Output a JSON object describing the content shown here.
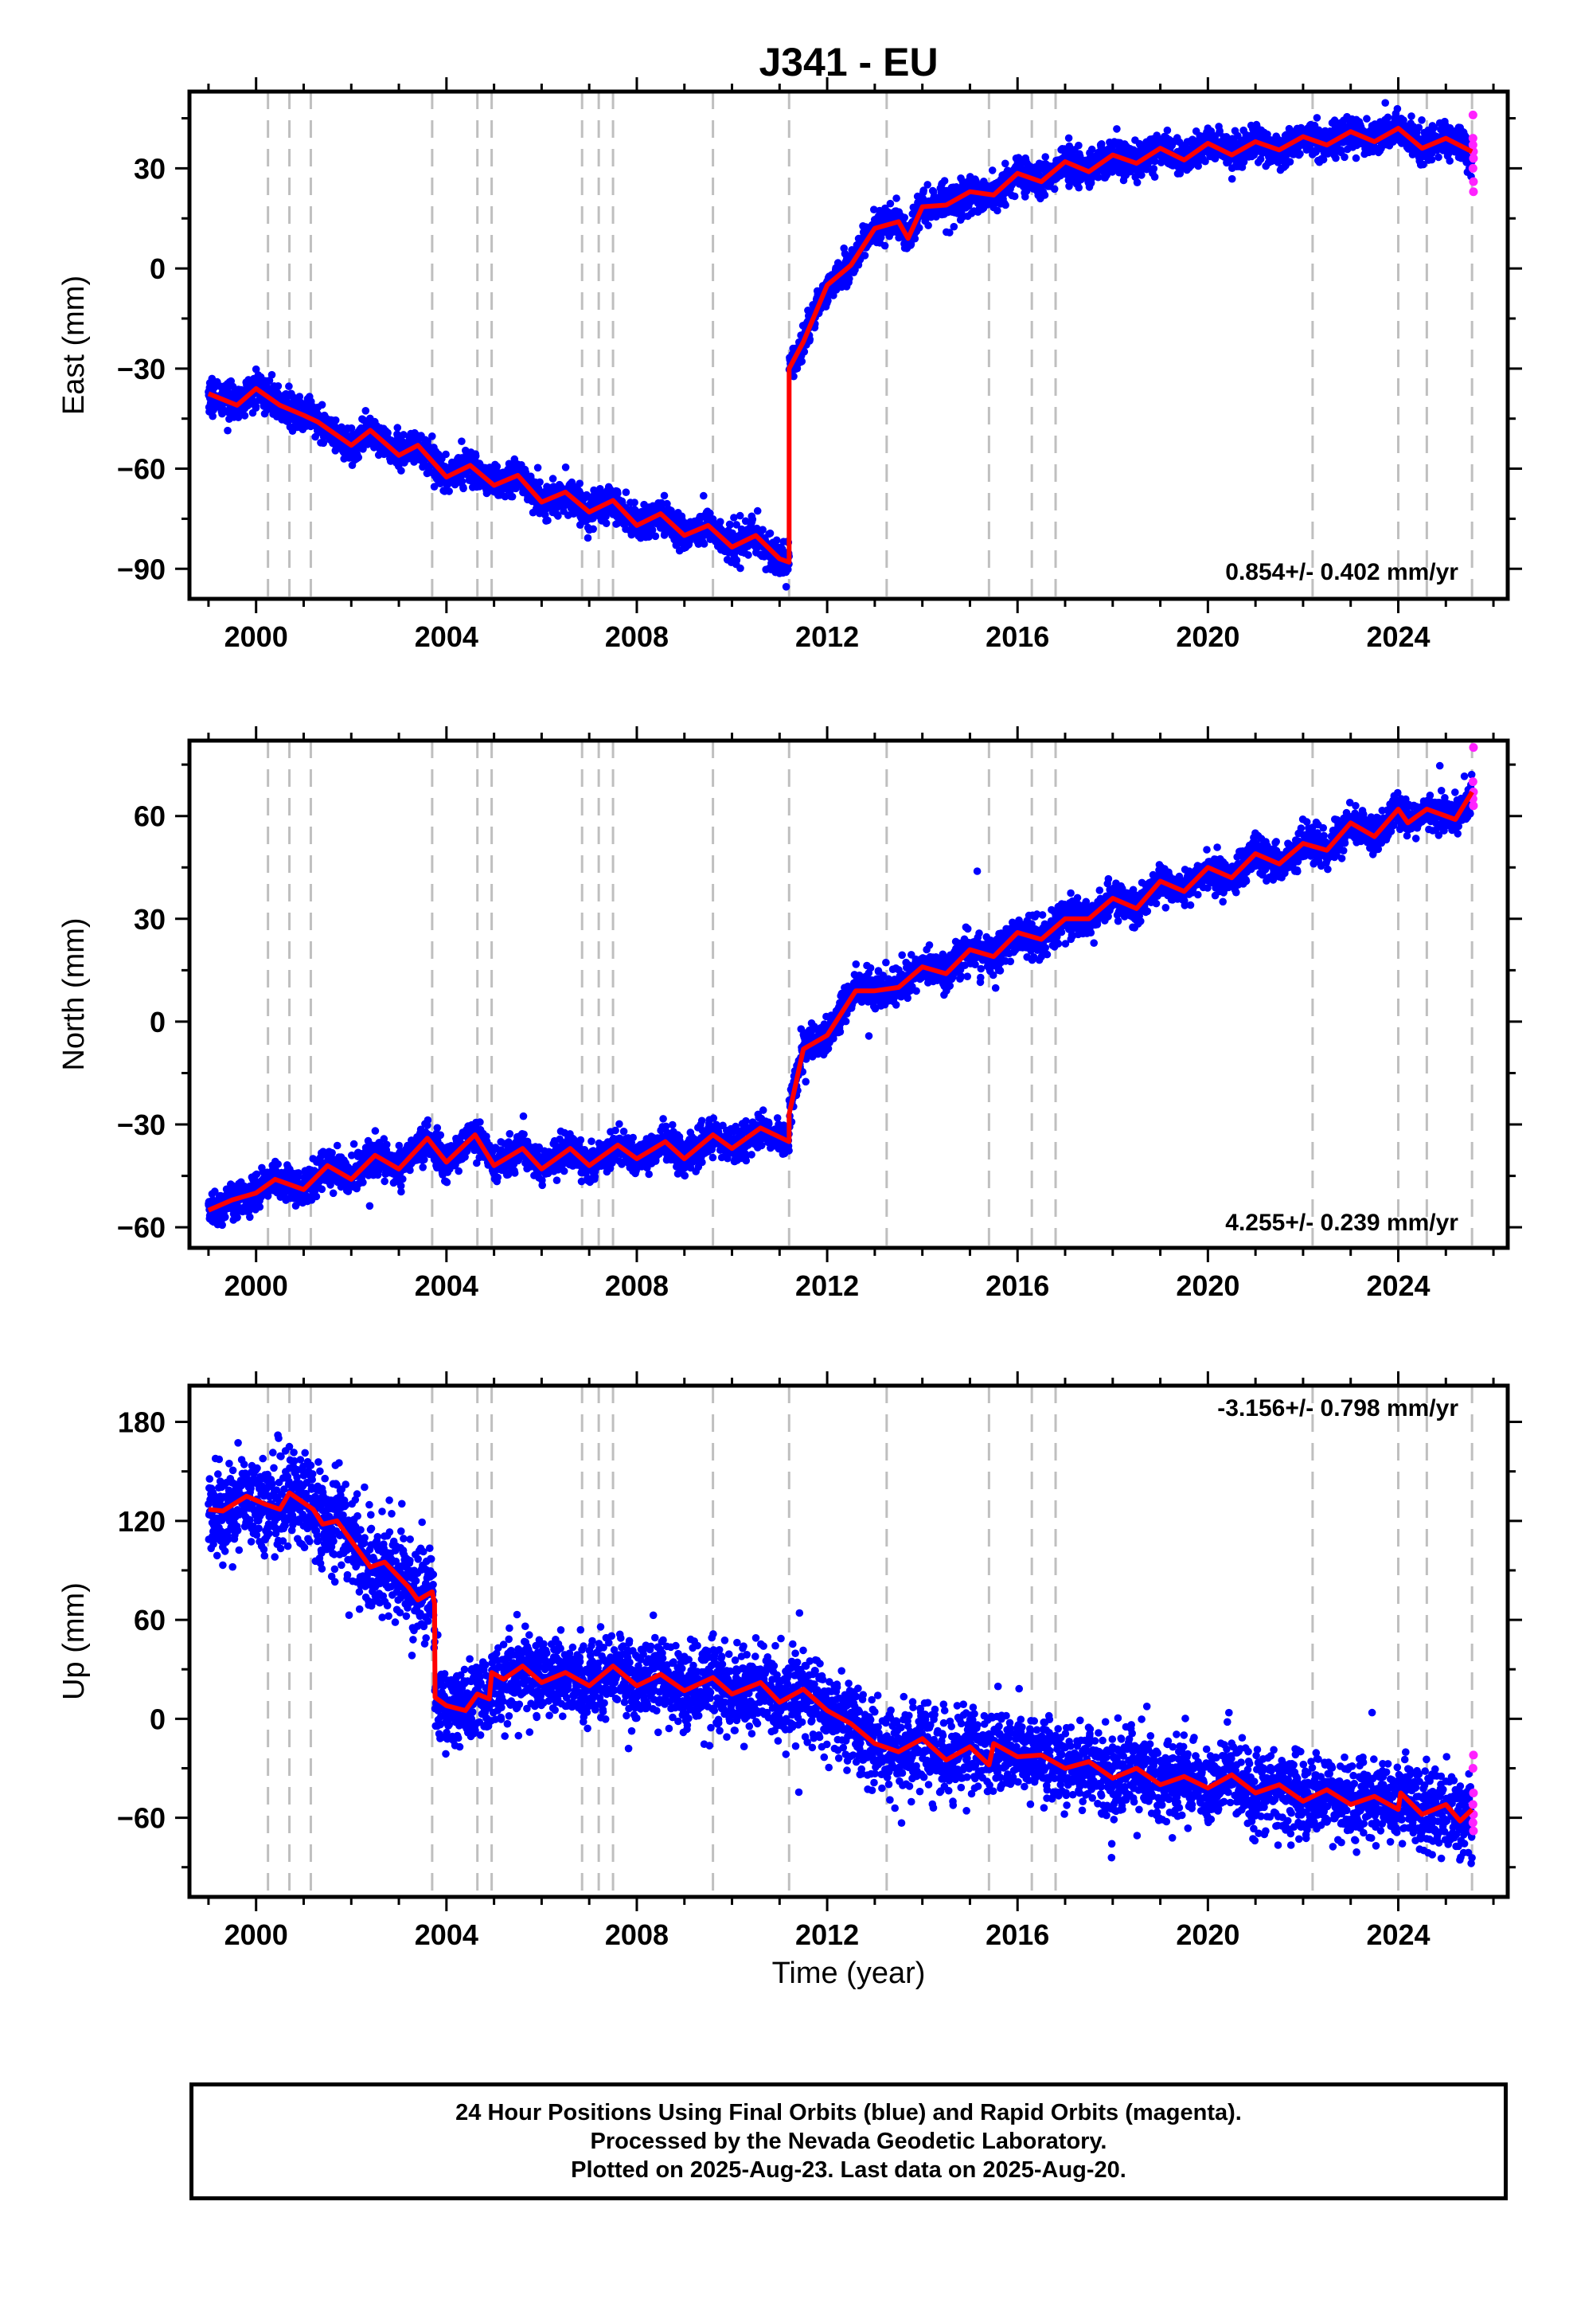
{
  "title": "J341 - EU",
  "xlabel": "Time (year)",
  "colors": {
    "final": "#0000ff",
    "rapid": "#ff22ff",
    "model": "#ff0000",
    "event_lines": "#bfbfbf"
  },
  "footer": {
    "line1": "24 Hour Positions Using Final Orbits (blue) and Rapid Orbits (magenta).",
    "line2": "Processed by the Nevada Geodetic Laboratory.",
    "line3": "Plotted on 2025-Aug-23. Last data on 2025-Aug-20."
  },
  "chart_data": [
    {
      "type": "scatter",
      "ylabel": "East (mm)",
      "rate_label": "0.854+/- 0.402 mm/yr",
      "xlim": [
        1998.6,
        2026.3
      ],
      "ylim": [
        -99,
        53
      ],
      "yticks": [
        -90,
        -60,
        -30,
        0,
        30
      ],
      "xticks": [
        2000,
        2004,
        2008,
        2012,
        2016,
        2020,
        2024
      ],
      "event_lines": [
        2000.25,
        2000.7,
        2001.15,
        2003.7,
        2004.65,
        2004.95,
        2006.85,
        2007.2,
        2007.5,
        2009.6,
        2011.2,
        2013.25,
        2015.4,
        2016.3,
        2016.8,
        2022.2,
        2024.0,
        2024.6,
        2025.55
      ],
      "model": [
        [
          1999.0,
          -37.5
        ],
        [
          1999.6,
          -41.0
        ],
        [
          2000.0,
          -36.0
        ],
        [
          2000.5,
          -41.0
        ],
        [
          2001.0,
          -44.0
        ],
        [
          2001.3,
          -46.0
        ],
        [
          2002.0,
          -53.0
        ],
        [
          2002.4,
          -48.5
        ],
        [
          2003.0,
          -56.0
        ],
        [
          2003.4,
          -53.0
        ],
        [
          2004.0,
          -62.5
        ],
        [
          2004.5,
          -59.0
        ],
        [
          2005.0,
          -65.0
        ],
        [
          2005.5,
          -62.0
        ],
        [
          2006.0,
          -70.0
        ],
        [
          2006.5,
          -67.0
        ],
        [
          2007.0,
          -73.0
        ],
        [
          2007.5,
          -69.5
        ],
        [
          2008.0,
          -77.0
        ],
        [
          2008.5,
          -73.5
        ],
        [
          2009.0,
          -80.0
        ],
        [
          2009.5,
          -77.0
        ],
        [
          2010.0,
          -83.5
        ],
        [
          2010.5,
          -80.0
        ],
        [
          2011.0,
          -87.0
        ],
        [
          2011.2,
          -88.0
        ],
        [
          2011.2,
          -30.0
        ],
        [
          2011.5,
          -22.0
        ],
        [
          2012.0,
          -5.0
        ],
        [
          2012.5,
          1.0
        ],
        [
          2013.0,
          12.0
        ],
        [
          2013.5,
          14.0
        ],
        [
          2013.7,
          9.0
        ],
        [
          2014.0,
          18.5
        ],
        [
          2014.5,
          19.0
        ],
        [
          2015.0,
          23.0
        ],
        [
          2015.5,
          22.0
        ],
        [
          2016.0,
          28.5
        ],
        [
          2016.5,
          26.0
        ],
        [
          2017.0,
          32.0
        ],
        [
          2017.5,
          29.0
        ],
        [
          2018.0,
          34.0
        ],
        [
          2018.5,
          31.5
        ],
        [
          2019.0,
          36.0
        ],
        [
          2019.5,
          32.5
        ],
        [
          2020.0,
          37.5
        ],
        [
          2020.5,
          34.0
        ],
        [
          2021.0,
          38.0
        ],
        [
          2021.5,
          35.5
        ],
        [
          2022.0,
          39.5
        ],
        [
          2022.5,
          37.0
        ],
        [
          2023.0,
          41.0
        ],
        [
          2023.5,
          38.0
        ],
        [
          2024.0,
          42.0
        ],
        [
          2024.5,
          36.0
        ],
        [
          2025.0,
          39.0
        ],
        [
          2025.55,
          35.0
        ]
      ],
      "noise_mm": 2.5,
      "rapid": [
        [
          2025.57,
          46
        ],
        [
          2025.57,
          39
        ],
        [
          2025.57,
          37
        ],
        [
          2025.58,
          35
        ],
        [
          2025.58,
          33
        ],
        [
          2025.57,
          30
        ],
        [
          2025.58,
          26
        ],
        [
          2025.58,
          23
        ]
      ]
    },
    {
      "type": "scatter",
      "ylabel": "North (mm)",
      "rate_label": "4.255+/- 0.239 mm/yr",
      "xlim": [
        1998.6,
        2026.3
      ],
      "ylim": [
        -66,
        82
      ],
      "yticks": [
        -60,
        -30,
        0,
        30,
        60
      ],
      "xticks": [
        2000,
        2004,
        2008,
        2012,
        2016,
        2020,
        2024
      ],
      "event_lines": [
        2000.25,
        2000.7,
        2001.15,
        2003.7,
        2004.65,
        2004.95,
        2006.85,
        2007.2,
        2007.5,
        2009.6,
        2011.2,
        2013.25,
        2015.4,
        2016.3,
        2016.8,
        2022.2,
        2024.0,
        2024.6,
        2025.55
      ],
      "model": [
        [
          1999.0,
          -55.0
        ],
        [
          1999.5,
          -52.0
        ],
        [
          2000.0,
          -50.0
        ],
        [
          2000.4,
          -46.0
        ],
        [
          2001.0,
          -49.0
        ],
        [
          2001.5,
          -42.0
        ],
        [
          2002.0,
          -46.0
        ],
        [
          2002.5,
          -39.0
        ],
        [
          2003.0,
          -43.0
        ],
        [
          2003.6,
          -34.0
        ],
        [
          2004.0,
          -41.0
        ],
        [
          2004.6,
          -33.0
        ],
        [
          2005.0,
          -42.0
        ],
        [
          2005.6,
          -37.0
        ],
        [
          2006.0,
          -43.0
        ],
        [
          2006.6,
          -37.0
        ],
        [
          2007.0,
          -42.0
        ],
        [
          2007.6,
          -36.0
        ],
        [
          2008.0,
          -40.0
        ],
        [
          2008.6,
          -35.0
        ],
        [
          2009.0,
          -40.0
        ],
        [
          2009.6,
          -33.0
        ],
        [
          2010.0,
          -37.0
        ],
        [
          2010.6,
          -31.0
        ],
        [
          2011.2,
          -35.0
        ],
        [
          2011.2,
          -27.0
        ],
        [
          2011.5,
          -8.0
        ],
        [
          2012.0,
          -4.0
        ],
        [
          2012.6,
          9.0
        ],
        [
          2013.0,
          9.0
        ],
        [
          2013.5,
          10.0
        ],
        [
          2014.0,
          16.0
        ],
        [
          2014.5,
          14.0
        ],
        [
          2015.0,
          21.0
        ],
        [
          2015.5,
          19.0
        ],
        [
          2016.0,
          26.0
        ],
        [
          2016.5,
          24.0
        ],
        [
          2017.0,
          30.0
        ],
        [
          2017.5,
          30.0
        ],
        [
          2018.0,
          36.0
        ],
        [
          2018.5,
          33.0
        ],
        [
          2019.0,
          41.0
        ],
        [
          2019.5,
          38.0
        ],
        [
          2020.0,
          45.0
        ],
        [
          2020.5,
          42.0
        ],
        [
          2021.0,
          49.0
        ],
        [
          2021.5,
          46.0
        ],
        [
          2022.0,
          52.0
        ],
        [
          2022.5,
          50.0
        ],
        [
          2023.0,
          58.0
        ],
        [
          2023.5,
          54.0
        ],
        [
          2024.0,
          62.0
        ],
        [
          2024.2,
          58.0
        ],
        [
          2024.6,
          62.0
        ],
        [
          2025.2,
          59.0
        ],
        [
          2025.55,
          67.0
        ]
      ],
      "noise_mm": 2.5,
      "rapid": [
        [
          2025.58,
          80
        ],
        [
          2025.57,
          70
        ],
        [
          2025.58,
          67
        ],
        [
          2025.57,
          65
        ],
        [
          2025.58,
          63
        ]
      ]
    },
    {
      "type": "scatter",
      "ylabel": "Up (mm)",
      "rate_label": "-3.156+/- 0.798 mm/yr",
      "xlim": [
        1998.6,
        2026.3
      ],
      "ylim": [
        -108,
        202
      ],
      "yticks": [
        -60,
        0,
        60,
        120,
        180
      ],
      "xticks": [
        2000,
        2004,
        2008,
        2012,
        2016,
        2020,
        2024
      ],
      "event_lines": [
        2000.25,
        2000.7,
        2001.15,
        2003.7,
        2004.65,
        2004.95,
        2006.85,
        2007.2,
        2007.5,
        2009.6,
        2011.2,
        2013.25,
        2015.4,
        2016.3,
        2016.8,
        2022.2,
        2024.0,
        2024.6,
        2025.55
      ],
      "model": [
        [
          1999.0,
          127.0
        ],
        [
          1999.3,
          126.0
        ],
        [
          1999.8,
          135.0
        ],
        [
          2000.2,
          130.0
        ],
        [
          2000.5,
          127.0
        ],
        [
          2000.7,
          137.0
        ],
        [
          2001.2,
          127.0
        ],
        [
          2001.4,
          118.0
        ],
        [
          2001.7,
          120.0
        ],
        [
          2002.0,
          108.0
        ],
        [
          2002.4,
          92.0
        ],
        [
          2002.7,
          95.0
        ],
        [
          2003.2,
          80.0
        ],
        [
          2003.4,
          72.0
        ],
        [
          2003.7,
          77.0
        ],
        [
          2003.75,
          70.0
        ],
        [
          2003.76,
          13.0
        ],
        [
          2004.0,
          8.0
        ],
        [
          2004.4,
          5.0
        ],
        [
          2004.65,
          15.0
        ],
        [
          2004.9,
          12.0
        ],
        [
          2004.95,
          28.0
        ],
        [
          2005.2,
          24.0
        ],
        [
          2005.6,
          32.0
        ],
        [
          2006.0,
          22.0
        ],
        [
          2006.5,
          28.0
        ],
        [
          2007.0,
          20.0
        ],
        [
          2007.5,
          32.0
        ],
        [
          2008.0,
          20.0
        ],
        [
          2008.5,
          27.0
        ],
        [
          2009.0,
          17.0
        ],
        [
          2009.6,
          25.0
        ],
        [
          2010.0,
          15.0
        ],
        [
          2010.6,
          22.0
        ],
        [
          2011.0,
          10.0
        ],
        [
          2011.5,
          18.0
        ],
        [
          2012.0,
          5.0
        ],
        [
          2012.5,
          -3.0
        ],
        [
          2013.0,
          -15.0
        ],
        [
          2013.5,
          -20.0
        ],
        [
          2014.0,
          -12.0
        ],
        [
          2014.5,
          -25.0
        ],
        [
          2015.0,
          -17.0
        ],
        [
          2015.4,
          -28.0
        ],
        [
          2015.5,
          -15.0
        ],
        [
          2016.0,
          -23.0
        ],
        [
          2016.5,
          -22.0
        ],
        [
          2017.0,
          -30.0
        ],
        [
          2017.5,
          -26.0
        ],
        [
          2018.0,
          -36.0
        ],
        [
          2018.5,
          -30.0
        ],
        [
          2019.0,
          -40.0
        ],
        [
          2019.5,
          -35.0
        ],
        [
          2020.0,
          -42.0
        ],
        [
          2020.5,
          -34.0
        ],
        [
          2021.0,
          -45.0
        ],
        [
          2021.5,
          -40.0
        ],
        [
          2022.0,
          -50.0
        ],
        [
          2022.5,
          -43.0
        ],
        [
          2023.0,
          -52.0
        ],
        [
          2023.5,
          -47.0
        ],
        [
          2024.0,
          -55.0
        ],
        [
          2024.05,
          -45.0
        ],
        [
          2024.5,
          -58.0
        ],
        [
          2025.0,
          -52.0
        ],
        [
          2025.3,
          -62.0
        ],
        [
          2025.55,
          -55.0
        ]
      ],
      "noise_mm": 12,
      "rapid": [
        [
          2025.58,
          -22
        ],
        [
          2025.57,
          -30
        ],
        [
          2025.58,
          -45
        ],
        [
          2025.57,
          -52
        ],
        [
          2025.58,
          -58
        ],
        [
          2025.57,
          -63
        ],
        [
          2025.58,
          -68
        ]
      ]
    }
  ]
}
